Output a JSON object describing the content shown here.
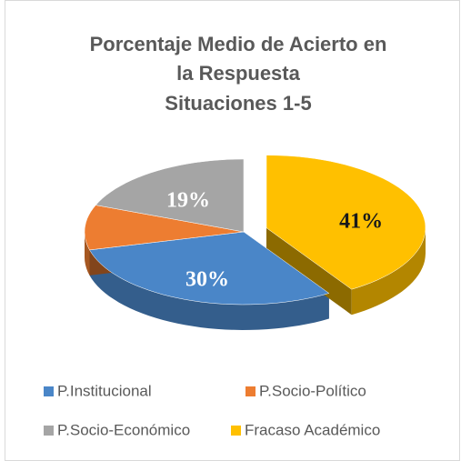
{
  "chart_data": {
    "type": "pie3d",
    "title": [
      "Porcentaje Medio de Acierto en",
      "la Respuesta",
      "Situaciones 1-5"
    ],
    "categories": [
      "P.Institucional",
      "P.Socio-Político",
      "P.Socio-Económico",
      "Fracaso Académico"
    ],
    "values": [
      30,
      10,
      19,
      41
    ],
    "value_labels": [
      "30%",
      null,
      "19%",
      "41%"
    ],
    "colors": [
      "#4a86c8",
      "#ed7d31",
      "#a5a5a5",
      "#ffc000"
    ],
    "exploded": [
      false,
      false,
      false,
      true
    ],
    "legend": "bottom"
  }
}
